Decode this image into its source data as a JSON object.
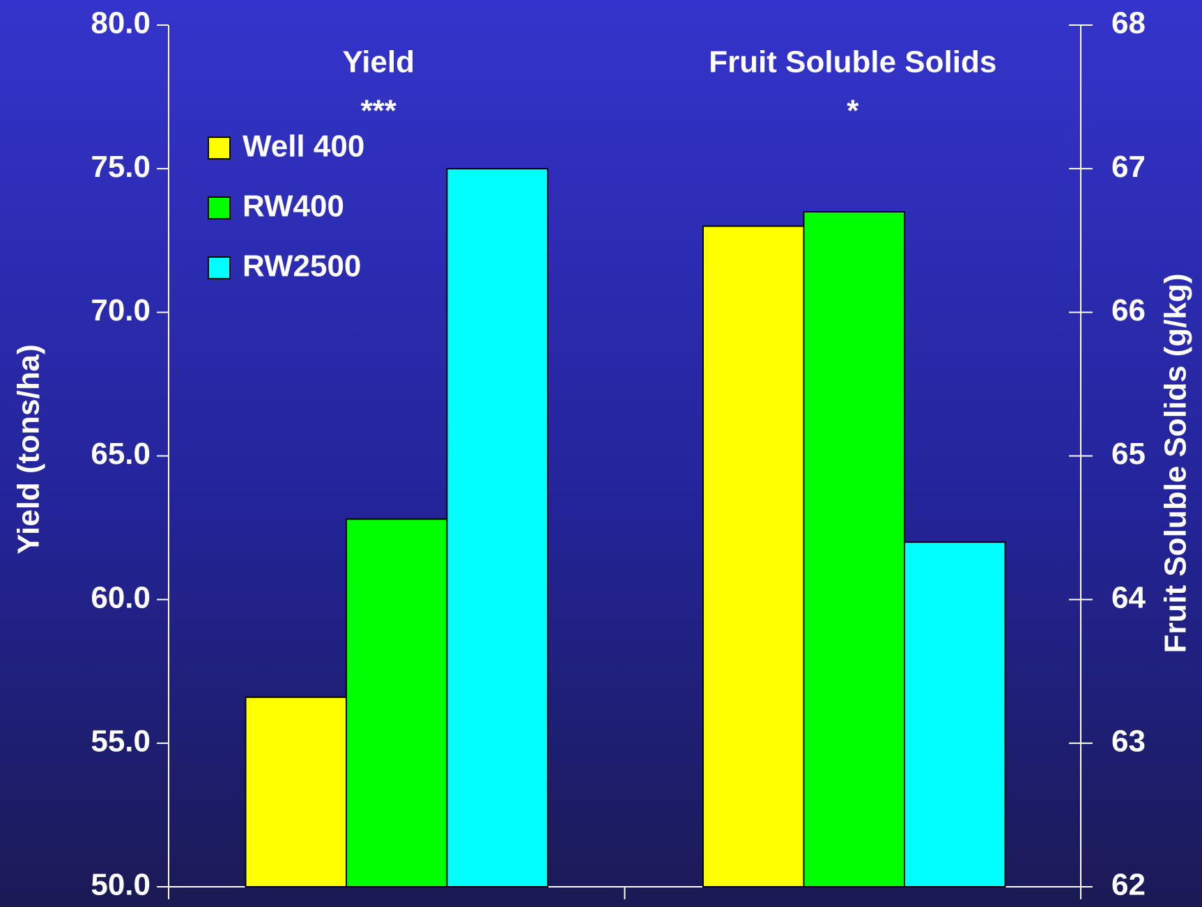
{
  "chart_data": {
    "type": "bar",
    "categories": [
      "Yield",
      "Fruit Soluble Solids"
    ],
    "category_axes": [
      "y",
      "y2"
    ],
    "significance": [
      "***",
      "*"
    ],
    "series": [
      {
        "name": "Well 400",
        "color": "#ffff00",
        "values": [
          56.6,
          66.6
        ]
      },
      {
        "name": "RW400",
        "color": "#00ff00",
        "values": [
          62.8,
          66.7
        ]
      },
      {
        "name": "RW2500",
        "color": "#00ffff",
        "values": [
          75.0,
          64.4
        ]
      }
    ],
    "y_label": "Yield (tons/ha)",
    "y2_label": "Fruit Soluble Solids (g/kg)",
    "ylim": [
      50,
      80
    ],
    "yticks": [
      {
        "value": 50,
        "label": "50.0"
      },
      {
        "value": 55,
        "label": "55.0"
      },
      {
        "value": 60,
        "label": "60.0"
      },
      {
        "value": 65,
        "label": "65.0"
      },
      {
        "value": 70,
        "label": "70.0"
      },
      {
        "value": 75,
        "label": "75.0"
      },
      {
        "value": 80,
        "label": "80.0"
      }
    ],
    "y2lim": [
      62,
      68
    ],
    "y2ticks": [
      62,
      63,
      64,
      65,
      66,
      67,
      68
    ],
    "legend": "upper-left",
    "grid": false
  }
}
